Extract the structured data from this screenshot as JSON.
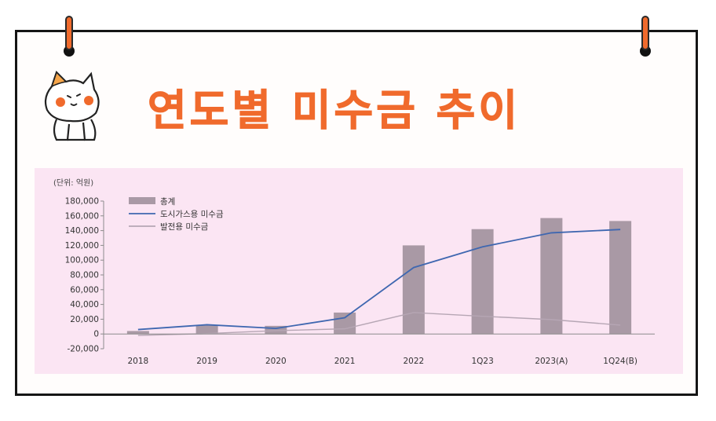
{
  "title": "연도별 미수금 추이",
  "colors": {
    "accent": "#f06a2c",
    "panel": "#fbe5f3",
    "bar": "#a999a5",
    "line_city": "#3f67b0",
    "line_power": "#b6a6b4"
  },
  "chart_data": {
    "type": "bar+line",
    "unit_label": "(단위: 억원)",
    "categories": [
      "2018",
      "2019",
      "2020",
      "2021",
      "2022",
      "1Q23",
      "2023(A)",
      "1Q24(B)"
    ],
    "ylim": [
      -20000,
      180000
    ],
    "yticks": [
      "180,000",
      "160,000",
      "140,000",
      "120,000",
      "100,000",
      "80,000",
      "60,000",
      "40,000",
      "20,000",
      "0",
      "-20,000"
    ],
    "ytick_values": [
      180000,
      160000,
      140000,
      120000,
      100000,
      80000,
      60000,
      40000,
      20000,
      0,
      -20000
    ],
    "series": [
      {
        "name": "총계",
        "kind": "bar",
        "values": [
          4000,
          12000,
          11000,
          29000,
          120000,
          142000,
          157000,
          153000
        ]
      },
      {
        "name": "도시가스용 미수금",
        "kind": "line",
        "values": [
          6000,
          12500,
          7500,
          22000,
          90000,
          118000,
          137000,
          141500
        ]
      },
      {
        "name": "발전용 미수금",
        "kind": "line",
        "values": [
          -2000,
          500,
          4500,
          7000,
          29000,
          24000,
          19500,
          12000
        ]
      }
    ],
    "legend_position": "top-left",
    "grid": false
  }
}
